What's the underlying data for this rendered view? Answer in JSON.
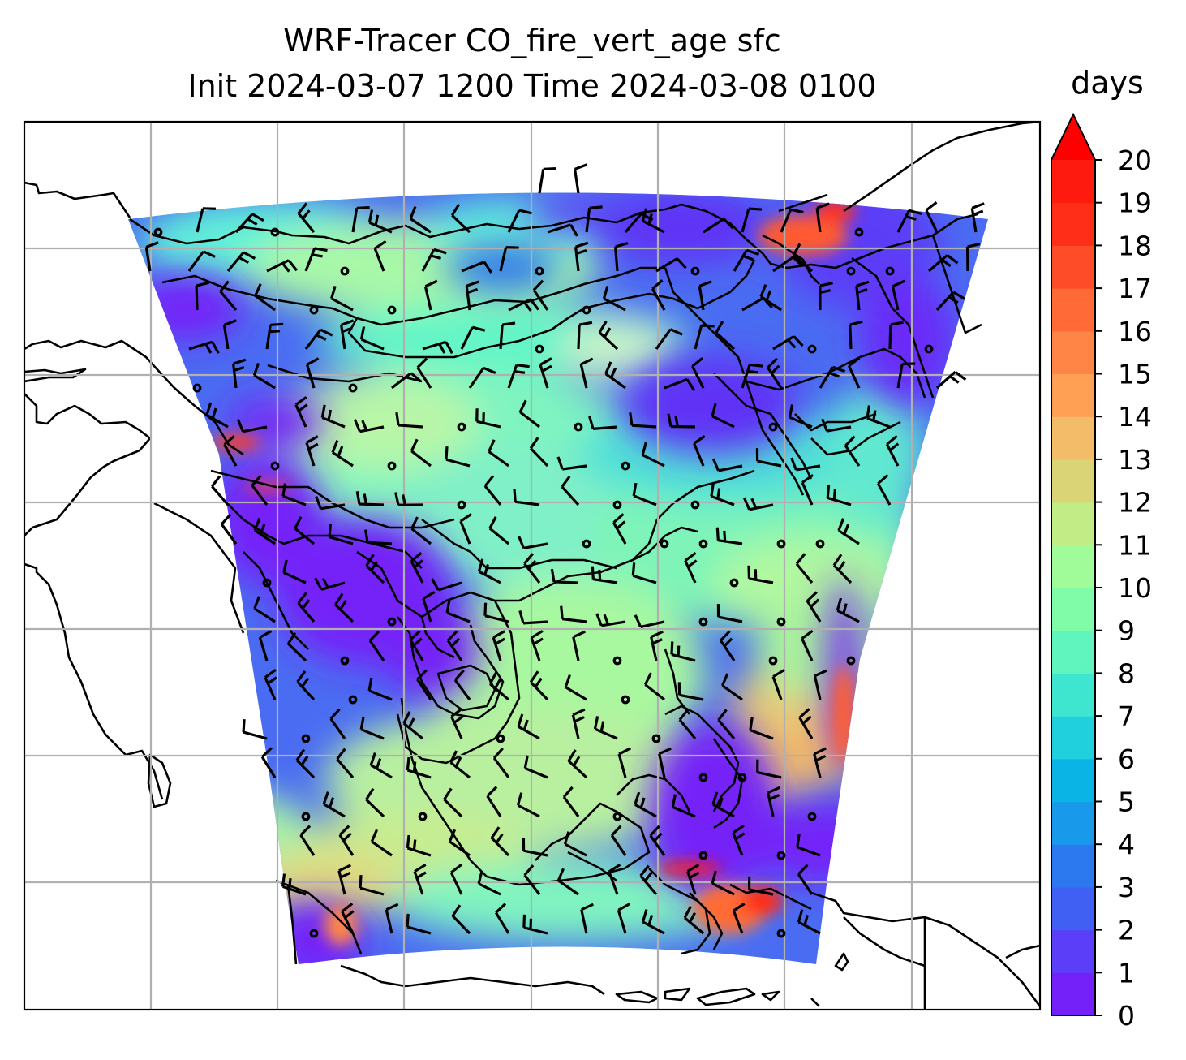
{
  "title_line1": "WRF-Tracer CO_fire_vert_age sfc",
  "title_line2": "Init 2024-03-07 1200 Time 2024-03-08 0100",
  "colorbar": {
    "label": "days",
    "min": 0,
    "max": 20,
    "step": 1,
    "extend": "max",
    "ticks": [
      "0",
      "1",
      "2",
      "3",
      "4",
      "5",
      "6",
      "7",
      "8",
      "9",
      "10",
      "11",
      "12",
      "13",
      "14",
      "15",
      "16",
      "17",
      "18",
      "19",
      "20"
    ],
    "colors": [
      "#7420f8",
      "#5b3ef7",
      "#4060f4",
      "#2c78ef",
      "#1899e9",
      "#0ab4e4",
      "#20d0dc",
      "#3ee6cf",
      "#60f5bf",
      "#80fca9",
      "#a0fc98",
      "#c2ec86",
      "#dbd477",
      "#f2bc68",
      "#ffa055",
      "#ff8546",
      "#ff6a36",
      "#ff4c28",
      "#ff2e18",
      "#ff1a10"
    ],
    "extend_color": "#ff0000"
  },
  "map": {
    "projection": "lambert-conformal",
    "gridlines": "on",
    "wind_barbs": "on",
    "coastlines": "on"
  }
}
